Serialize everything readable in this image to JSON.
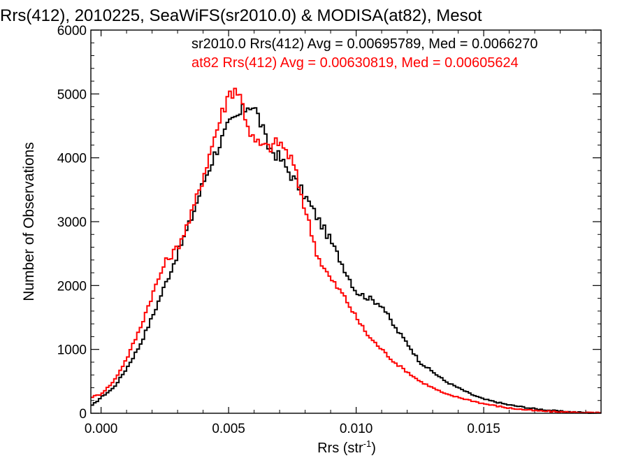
{
  "chart_data": {
    "type": "line",
    "title": "Rrs(412), 2010225, SeaWiFS(sr2010.0) & MODISA(at82), Mesot",
    "xlabel": "Rrs (str",
    "xlabel_sup": "-1",
    "xlabel_close": ")",
    "ylabel": "Number of Observations",
    "xlim": [
      -0.0004,
      0.0196
    ],
    "ylim": [
      0,
      6000
    ],
    "xticks": [
      0.0,
      0.005,
      0.01,
      0.015
    ],
    "xtick_labels": [
      "0.000",
      "0.005",
      "0.010",
      "0.015"
    ],
    "yticks": [
      0,
      1000,
      2000,
      3000,
      4000,
      5000,
      6000
    ],
    "ytick_labels": [
      "0",
      "1000",
      "2000",
      "3000",
      "4000",
      "5000",
      "6000"
    ],
    "grid": false,
    "legend_position": "top",
    "series": [
      {
        "name": "sr2010.0 Rrs(412) Avg = 0.00695789, Med = 0.0066270",
        "color": "#000000",
        "x": [
          -0.0004,
          0.0,
          0.0005,
          0.001,
          0.0015,
          0.002,
          0.0025,
          0.003,
          0.0035,
          0.004,
          0.0045,
          0.005,
          0.0055,
          0.0058,
          0.006,
          0.0063,
          0.0065,
          0.007,
          0.0075,
          0.008,
          0.0085,
          0.009,
          0.0095,
          0.01,
          0.0105,
          0.011,
          0.0115,
          0.012,
          0.0125,
          0.013,
          0.0135,
          0.014,
          0.0145,
          0.015,
          0.016,
          0.017,
          0.018,
          0.019,
          0.0196
        ],
        "y": [
          100,
          250,
          400,
          700,
          1050,
          1500,
          2000,
          2500,
          3000,
          3600,
          4100,
          4500,
          4700,
          4850,
          4800,
          4500,
          4200,
          4000,
          3700,
          3400,
          3050,
          2700,
          2300,
          1900,
          1800,
          1700,
          1350,
          1100,
          800,
          650,
          500,
          400,
          300,
          220,
          130,
          70,
          30,
          10,
          5
        ]
      },
      {
        "name": "at82 Rrs(412) Avg = 0.00630819, Med = 0.00605624",
        "color": "#ff0000",
        "x": [
          -0.0004,
          0.0,
          0.0005,
          0.001,
          0.0015,
          0.002,
          0.0025,
          0.003,
          0.0035,
          0.004,
          0.0045,
          0.005,
          0.0053,
          0.0055,
          0.0058,
          0.006,
          0.0065,
          0.007,
          0.0075,
          0.008,
          0.0085,
          0.009,
          0.0095,
          0.01,
          0.0105,
          0.011,
          0.0115,
          0.012,
          0.0125,
          0.013,
          0.0135,
          0.014,
          0.015,
          0.016,
          0.017,
          0.018,
          0.019,
          0.0196
        ],
        "y": [
          250,
          300,
          500,
          850,
          1300,
          1850,
          2350,
          2600,
          3050,
          3700,
          4400,
          5000,
          5100,
          4900,
          4450,
          4250,
          4150,
          4250,
          3950,
          3200,
          2450,
          2100,
          1850,
          1500,
          1200,
          1000,
          800,
          650,
          500,
          400,
          300,
          250,
          150,
          80,
          40,
          20,
          10,
          5
        ]
      }
    ]
  }
}
